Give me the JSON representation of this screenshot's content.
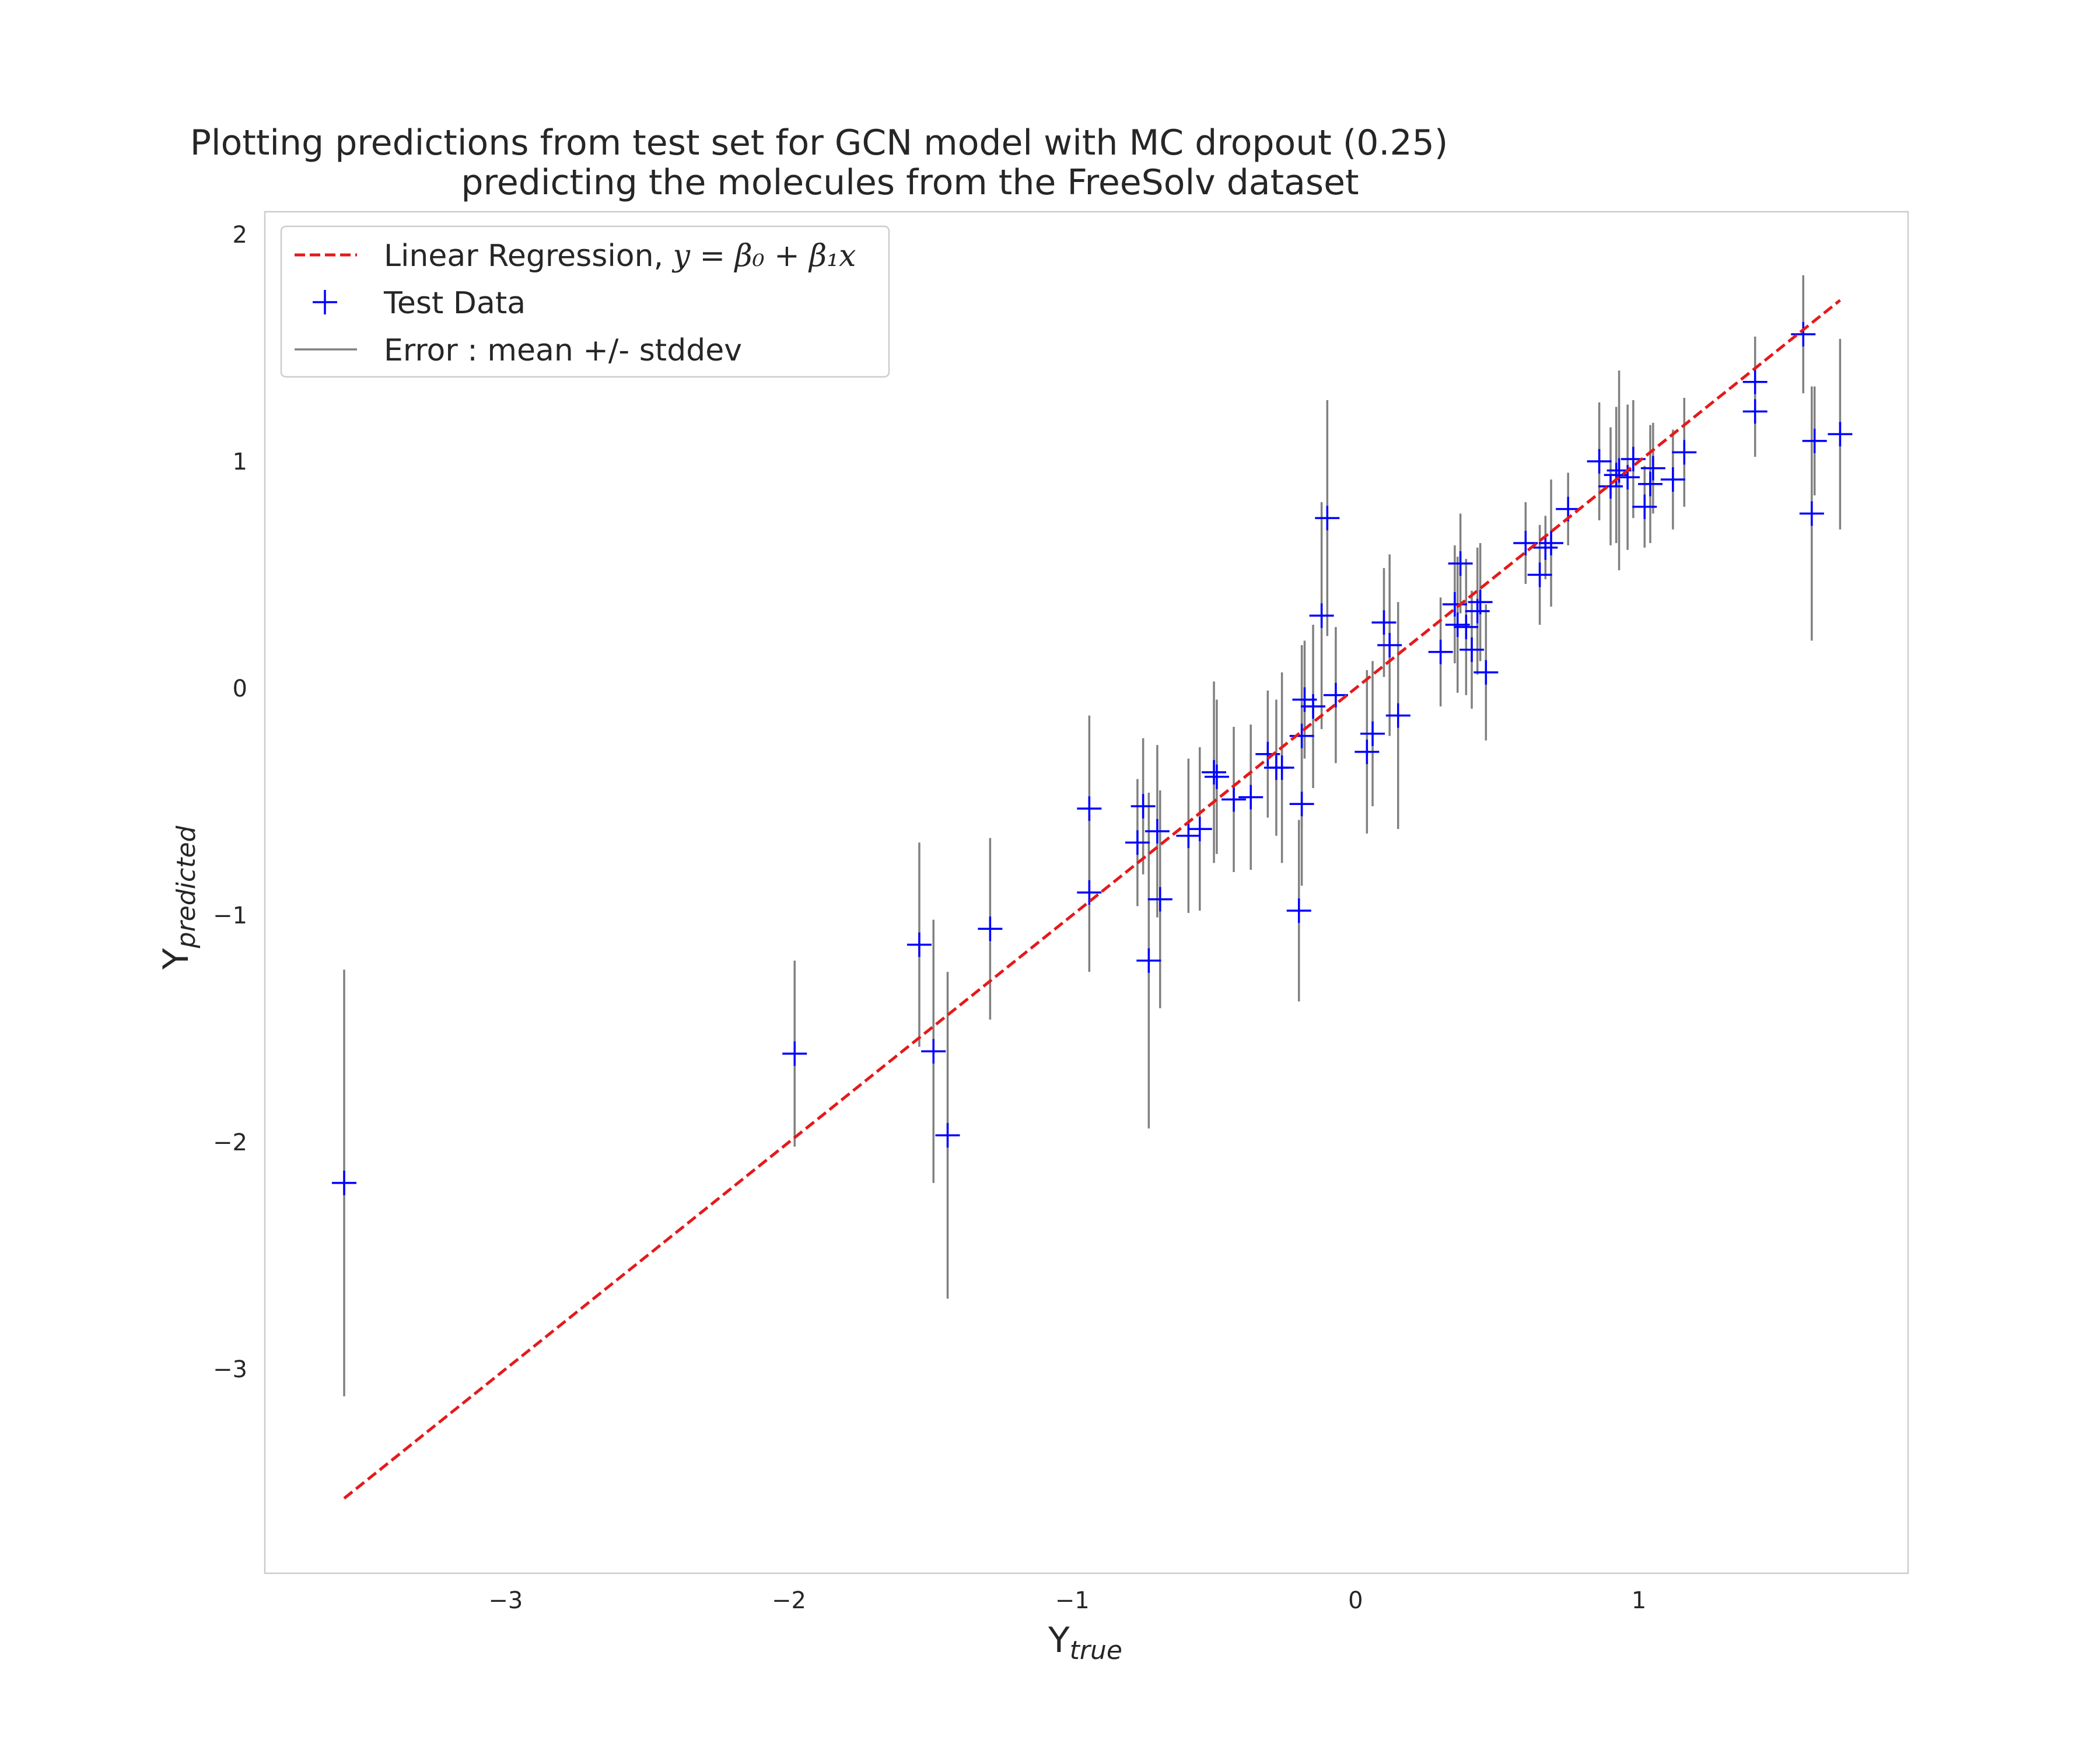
{
  "chart_data": {
    "type": "scatter",
    "title_line1": "Plotting predictions from test set for GCN model with MC dropout (0.25)",
    "title_line2": "predicting the molecules from the FreeSolv dataset",
    "xlabel_main": "Y",
    "xlabel_sub": "true",
    "ylabel_main": "Y",
    "ylabel_sub": "predicted",
    "xlim": [
      -3.85,
      1.95
    ],
    "ylim": [
      -3.9,
      2.1
    ],
    "xticks": [
      -3,
      -2,
      -1,
      0,
      1
    ],
    "xtick_labels": [
      "−3",
      "−2",
      "−1",
      "0",
      "1"
    ],
    "yticks": [
      -3,
      -2,
      -1,
      0,
      1,
      2
    ],
    "ytick_labels": [
      "−3",
      "−2",
      "−1",
      "0",
      "1",
      "2"
    ],
    "grid": false,
    "legend_position": "upper-left",
    "legend": {
      "regression_prefix": "Linear Regression, ",
      "regression_math": "y = β₀ + β₁x",
      "test_data": "Test Data",
      "error": "Error : mean +/- stddev"
    },
    "regression_line": {
      "x": [
        -3.57,
        1.71
      ],
      "y": [
        -3.57,
        1.71
      ],
      "color": "#e41a1c"
    },
    "points_color": "#0000ff",
    "error_color": "#808080",
    "points": [
      {
        "x": -3.57,
        "y": -2.18,
        "err": 0.94
      },
      {
        "x": -1.98,
        "y": -1.61,
        "err": 0.41
      },
      {
        "x": -1.54,
        "y": -1.13,
        "err": 0.45
      },
      {
        "x": -1.49,
        "y": -1.6,
        "err": 0.58
      },
      {
        "x": -1.44,
        "y": -1.97,
        "err": 0.72
      },
      {
        "x": -1.29,
        "y": -1.06,
        "err": 0.4
      },
      {
        "x": -0.94,
        "y": -0.53,
        "err": 0.41
      },
      {
        "x": -0.94,
        "y": -0.9,
        "err": 0.35
      },
      {
        "x": -0.77,
        "y": -0.68,
        "err": 0.28
      },
      {
        "x": -0.75,
        "y": -0.52,
        "err": 0.3
      },
      {
        "x": -0.73,
        "y": -1.2,
        "err": 0.74
      },
      {
        "x": -0.7,
        "y": -0.63,
        "err": 0.38
      },
      {
        "x": -0.69,
        "y": -0.93,
        "err": 0.48
      },
      {
        "x": -0.59,
        "y": -0.65,
        "err": 0.34
      },
      {
        "x": -0.55,
        "y": -0.62,
        "err": 0.36
      },
      {
        "x": -0.5,
        "y": -0.37,
        "err": 0.4
      },
      {
        "x": -0.49,
        "y": -0.39,
        "err": 0.34
      },
      {
        "x": -0.43,
        "y": -0.49,
        "err": 0.32
      },
      {
        "x": -0.37,
        "y": -0.48,
        "err": 0.32
      },
      {
        "x": -0.31,
        "y": -0.29,
        "err": 0.28
      },
      {
        "x": -0.28,
        "y": -0.35,
        "err": 0.3
      },
      {
        "x": -0.26,
        "y": -0.35,
        "err": 0.42
      },
      {
        "x": -0.2,
        "y": -0.98,
        "err": 0.4
      },
      {
        "x": -0.19,
        "y": -0.51,
        "err": 0.36
      },
      {
        "x": -0.19,
        "y": -0.21,
        "err": 0.4
      },
      {
        "x": -0.18,
        "y": -0.05,
        "err": 0.26
      },
      {
        "x": -0.15,
        "y": -0.08,
        "err": 0.36
      },
      {
        "x": -0.12,
        "y": 0.32,
        "err": 0.5
      },
      {
        "x": -0.1,
        "y": 0.75,
        "err": 0.52
      },
      {
        "x": -0.07,
        "y": -0.03,
        "err": 0.3
      },
      {
        "x": 0.04,
        "y": -0.28,
        "err": 0.36
      },
      {
        "x": 0.06,
        "y": -0.2,
        "err": 0.32
      },
      {
        "x": 0.1,
        "y": 0.29,
        "err": 0.24
      },
      {
        "x": 0.12,
        "y": 0.19,
        "err": 0.4
      },
      {
        "x": 0.15,
        "y": -0.12,
        "err": 0.5
      },
      {
        "x": 0.3,
        "y": 0.16,
        "err": 0.24
      },
      {
        "x": 0.35,
        "y": 0.37,
        "err": 0.26
      },
      {
        "x": 0.36,
        "y": 0.28,
        "err": 0.3
      },
      {
        "x": 0.37,
        "y": 0.55,
        "err": 0.22
      },
      {
        "x": 0.39,
        "y": 0.27,
        "err": 0.3
      },
      {
        "x": 0.41,
        "y": 0.17,
        "err": 0.26
      },
      {
        "x": 0.43,
        "y": 0.34,
        "err": 0.28
      },
      {
        "x": 0.44,
        "y": 0.38,
        "err": 0.26
      },
      {
        "x": 0.46,
        "y": 0.07,
        "err": 0.3
      },
      {
        "x": 0.6,
        "y": 0.64,
        "err": 0.18
      },
      {
        "x": 0.65,
        "y": 0.5,
        "err": 0.22
      },
      {
        "x": 0.67,
        "y": 0.62,
        "err": 0.14
      },
      {
        "x": 0.69,
        "y": 0.64,
        "err": 0.28
      },
      {
        "x": 0.75,
        "y": 0.79,
        "err": 0.16
      },
      {
        "x": 0.86,
        "y": 1.0,
        "err": 0.26
      },
      {
        "x": 0.9,
        "y": 0.89,
        "err": 0.26
      },
      {
        "x": 0.92,
        "y": 0.94,
        "err": 0.3
      },
      {
        "x": 0.93,
        "y": 0.96,
        "err": 0.44
      },
      {
        "x": 0.96,
        "y": 0.93,
        "err": 0.32
      },
      {
        "x": 0.98,
        "y": 1.01,
        "err": 0.26
      },
      {
        "x": 1.02,
        "y": 0.8,
        "err": 0.18
      },
      {
        "x": 1.04,
        "y": 0.9,
        "err": 0.26
      },
      {
        "x": 1.05,
        "y": 0.97,
        "err": 0.2
      },
      {
        "x": 1.12,
        "y": 0.92,
        "err": 0.22
      },
      {
        "x": 1.16,
        "y": 1.04,
        "err": 0.24
      },
      {
        "x": 1.41,
        "y": 1.35,
        "err": 0.2
      },
      {
        "x": 1.41,
        "y": 1.22,
        "err": 0.2
      },
      {
        "x": 1.58,
        "y": 1.56,
        "err": 0.26
      },
      {
        "x": 1.61,
        "y": 0.77,
        "err": 0.56
      },
      {
        "x": 1.62,
        "y": 1.09,
        "err": 0.24
      },
      {
        "x": 1.71,
        "y": 1.12,
        "err": 0.42
      }
    ]
  }
}
